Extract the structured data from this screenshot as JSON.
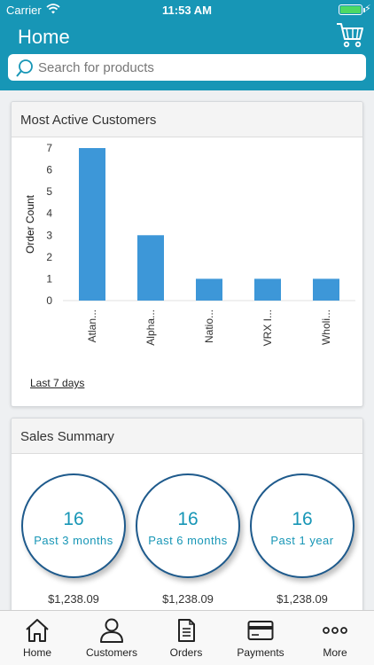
{
  "status_bar": {
    "carrier": "Carrier",
    "time": "11:53 AM"
  },
  "header": {
    "title": "Home"
  },
  "search": {
    "placeholder": "Search for products"
  },
  "customers": {
    "title": "Most Active Customers",
    "filter_label": "Last 7 days",
    "chart_data": {
      "type": "bar",
      "title": "Most Active Customers",
      "ylabel": "Order Count",
      "xlabel": "",
      "categories": [
        "Atlan...",
        "Alpha...",
        "Natio...",
        "VRX I...",
        "Wholi..."
      ],
      "values": [
        7,
        3,
        1,
        1,
        1
      ],
      "ylim": [
        0,
        7
      ],
      "yticks": [
        "0",
        "1",
        "2",
        "3",
        "4",
        "5",
        "6",
        "7"
      ],
      "bar_color": "#3d97d8",
      "grid": false
    }
  },
  "sales": {
    "title": "Sales Summary",
    "items": [
      {
        "count": "16",
        "period": "Past 3 months",
        "amount": "$1,238.09"
      },
      {
        "count": "16",
        "period": "Past 6 months",
        "amount": "$1,238.09"
      },
      {
        "count": "16",
        "period": "Past 1 year",
        "amount": "$1,238.09"
      }
    ]
  },
  "tabs": [
    {
      "label": "Home",
      "icon": "home-icon"
    },
    {
      "label": "Customers",
      "icon": "person-icon"
    },
    {
      "label": "Orders",
      "icon": "document-icon"
    },
    {
      "label": "Payments",
      "icon": "credit-card-icon"
    },
    {
      "label": "More",
      "icon": "more-dots-icon"
    }
  ],
  "colors": {
    "brand": "#1796b6",
    "circle_border": "#1e5a8c"
  }
}
